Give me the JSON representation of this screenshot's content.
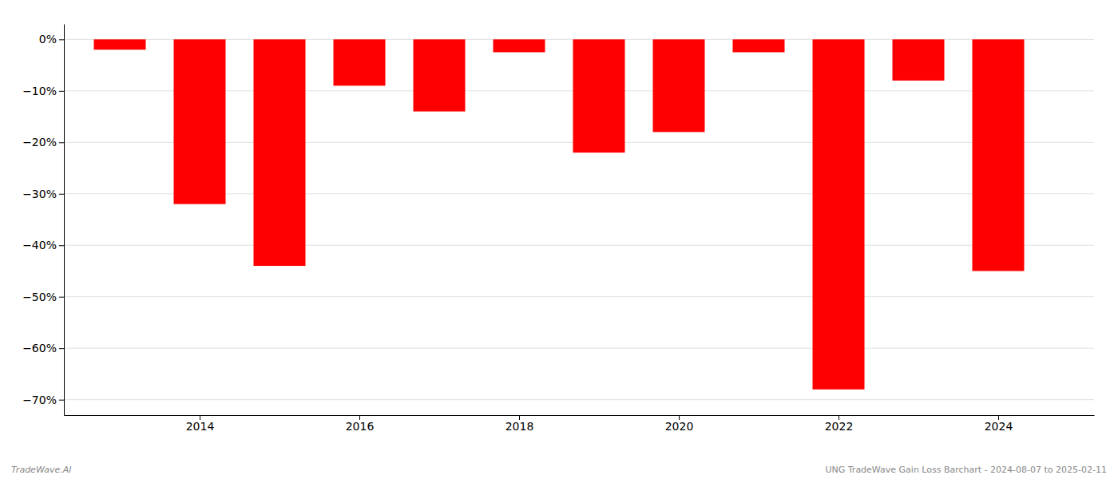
{
  "chart_data": {
    "type": "bar",
    "x": [
      2013,
      2014,
      2015,
      2016,
      2017,
      2018,
      2019,
      2020,
      2021,
      2022,
      2023,
      2024
    ],
    "values": [
      -2.0,
      -32.0,
      -44.0,
      -9.0,
      -14.0,
      -2.5,
      -22.0,
      -18.0,
      -2.5,
      -68.0,
      -8.0,
      -45.0
    ],
    "color": "#FF0000",
    "xlim": [
      2012.3,
      2025.2
    ],
    "xticks": [
      2014,
      2016,
      2018,
      2020,
      2022,
      2024
    ],
    "ylim": [
      -73,
      3
    ],
    "yticks": [
      {
        "value": 0,
        "label": "0%"
      },
      {
        "value": -10,
        "label": "−10%"
      },
      {
        "value": -20,
        "label": "−20%"
      },
      {
        "value": -30,
        "label": "−30%"
      },
      {
        "value": -40,
        "label": "−40%"
      },
      {
        "value": -50,
        "label": "−50%"
      },
      {
        "value": -60,
        "label": "−60%"
      },
      {
        "value": -70,
        "label": "−70%"
      }
    ],
    "grid": true,
    "annotations": [
      "TradeWave.AI",
      "UNG TradeWave Gain Loss Barchart - 2024-08-07 to 2025-02-11"
    ]
  }
}
